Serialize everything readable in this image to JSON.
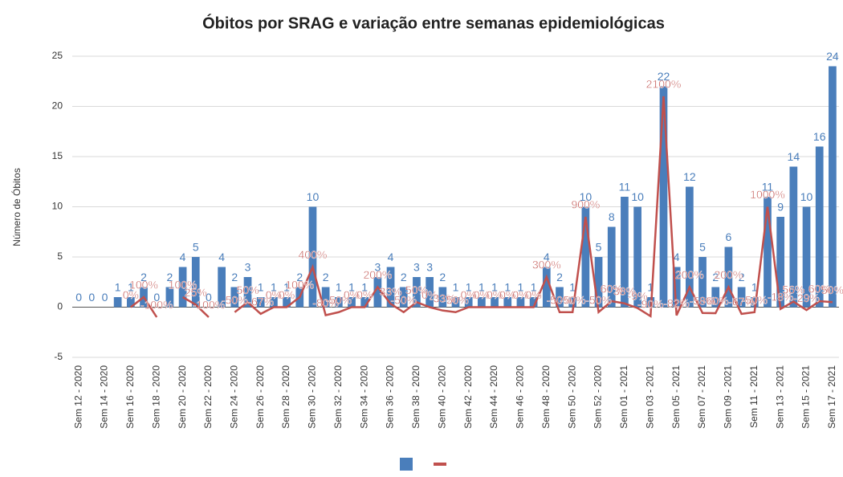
{
  "chart_data": {
    "type": "bar",
    "title": "Óbitos por SRAG e variação entre semanas epidemiológicas",
    "y_label": "Número de Óbitos",
    "categories": [
      "Sem 12 - 2020",
      null,
      "Sem 14 - 2020",
      null,
      "Sem 16 - 2020",
      null,
      "Sem 18 - 2020",
      null,
      "Sem 20 - 2020",
      null,
      "Sem 22 - 2020",
      null,
      "Sem 24 - 2020",
      null,
      "Sem 26 - 2020",
      null,
      "Sem 28 - 2020",
      null,
      "Sem 30 - 2020",
      null,
      "Sem 32 - 2020",
      null,
      "Sem 34 - 2020",
      null,
      "Sem 36 - 2020",
      null,
      "Sem 38 - 2020",
      null,
      "Sem 40 - 2020",
      null,
      "Sem 42 - 2020",
      null,
      "Sem 44 - 2020",
      null,
      "Sem 46 - 2020",
      null,
      "Sem 48 - 2020",
      null,
      "Sem 50 - 2020",
      null,
      "Sem 52 - 2020",
      null,
      "Sem 01 - 2021",
      null,
      "Sem 03 - 2021",
      null,
      "Sem 05 - 2021",
      null,
      "Sem 07 - 2021",
      null,
      "Sem 09 - 2021",
      null,
      "Sem 11 - 2021",
      null,
      "Sem 13 - 2021",
      null,
      "Sem 15 - 2021",
      null,
      "Sem 17 - 2021"
    ],
    "series": [
      {
        "type": "bar",
        "color": "#4a7ebb",
        "values": [
          0,
          0,
          0,
          1,
          1,
          2,
          0,
          2,
          4,
          5,
          0,
          4,
          2,
          3,
          1,
          1,
          1,
          2,
          10,
          2,
          1,
          1,
          1,
          3,
          4,
          2,
          3,
          3,
          2,
          1,
          1,
          1,
          1,
          1,
          1,
          1,
          4,
          2,
          1,
          10,
          5,
          8,
          11,
          10,
          1,
          22,
          4,
          12,
          5,
          2,
          6,
          2,
          1,
          11,
          9,
          14,
          10,
          16,
          24
        ]
      },
      {
        "type": "line",
        "color": "#c0504d",
        "values": [
          null,
          null,
          null,
          null,
          0,
          1,
          -1,
          null,
          1,
          0.25,
          -1,
          null,
          -0.5,
          0.5,
          -0.6667,
          0,
          0,
          1,
          4,
          -0.8,
          -0.5,
          0,
          0,
          2,
          0.3333,
          -0.5,
          0.5,
          0,
          -0.3333,
          -0.5,
          0,
          0,
          0,
          0,
          0,
          0,
          3,
          -0.5,
          -0.5,
          9,
          -0.5,
          0.6,
          0.375,
          -0.0909,
          -0.9,
          21,
          -0.8182,
          2,
          -0.5833,
          -0.6,
          2,
          -0.6667,
          -0.5,
          10,
          -0.1818,
          0.5556,
          -0.2857,
          0.6,
          0.5
        ],
        "value_labels": [
          null,
          null,
          null,
          null,
          "0%",
          "100%",
          "-100%",
          null,
          "100%",
          "25%",
          "-100%",
          null,
          "-50%",
          "50%",
          "-67%",
          "0%",
          "0%",
          "100%",
          "400%",
          "-80%",
          "-50%",
          "0%",
          "0%",
          "200%",
          "33%",
          "-50%",
          "50%",
          "0%",
          "-33%",
          "-50%",
          "0%",
          "0%",
          "0%",
          "0%",
          "0%",
          "0%",
          "300%",
          "-50%",
          "-50%",
          "900%",
          "-50%",
          "60%",
          "38%",
          "-9%",
          "-90%",
          "2100%",
          "-82%",
          "200%",
          "-58%",
          "-60%",
          "200%",
          "-67%",
          "-50%",
          "1000%",
          "-18%",
          "56%",
          "-29%",
          "60%",
          "50%"
        ]
      }
    ],
    "ylim": [
      -5,
      25
    ],
    "yticks": [
      -5,
      0,
      5,
      10,
      15,
      20,
      25
    ],
    "grid": true
  }
}
